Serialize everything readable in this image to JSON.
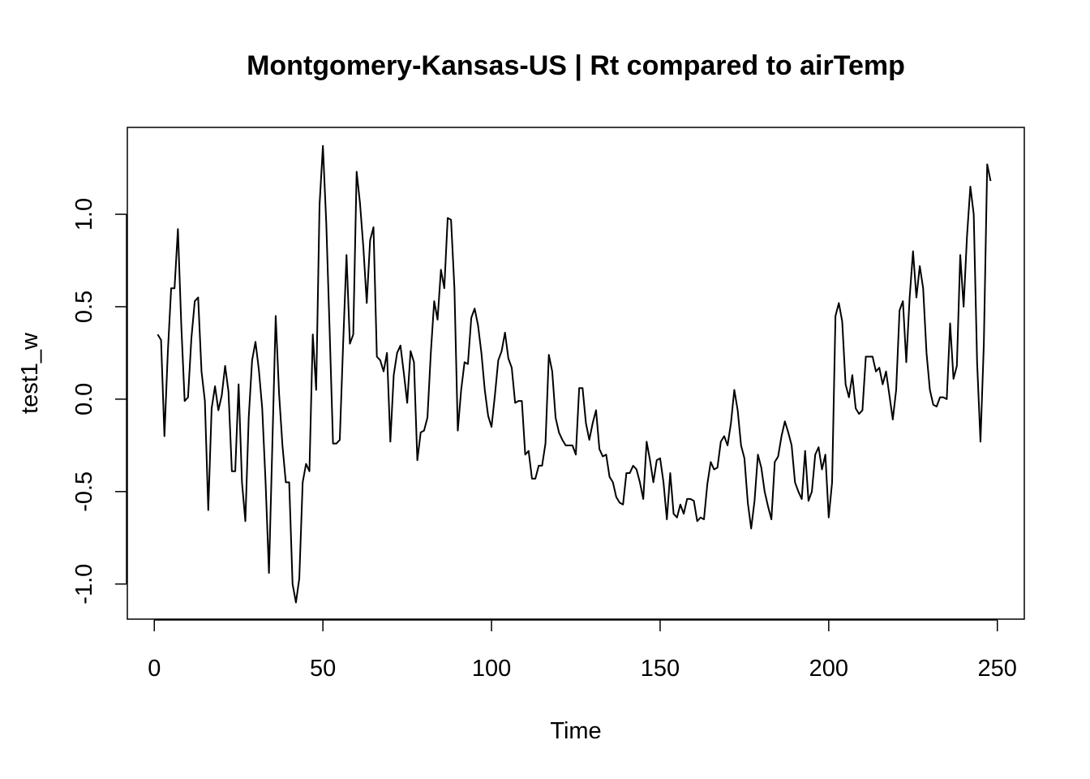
{
  "chart_data": {
    "type": "line",
    "title": "Montgomery-Kansas-US | Rt compared to airTemp",
    "xlabel": "Time",
    "ylabel": "test1_w",
    "xlim": [
      -8,
      258
    ],
    "ylim": [
      -1.19,
      1.47
    ],
    "x_ticks": [
      0,
      50,
      100,
      150,
      200,
      250
    ],
    "x_tick_labels": [
      "0",
      "50",
      "100",
      "150",
      "200",
      "250"
    ],
    "y_ticks": [
      -1.0,
      -0.5,
      0.0,
      0.5,
      1.0
    ],
    "y_tick_labels": [
      "-1.0",
      "-0.5",
      "0.0",
      "0.5",
      "1.0"
    ],
    "grid": false,
    "line_color": "#000000",
    "series": [
      {
        "x_start": 1,
        "x_step": 1,
        "values": [
          0.35,
          0.32,
          -0.2,
          0.25,
          0.6,
          0.6,
          0.92,
          0.4,
          -0.01,
          0.01,
          0.33,
          0.53,
          0.55,
          0.15,
          -0.01,
          -0.6,
          -0.05,
          0.07,
          -0.06,
          0.02,
          0.18,
          0.04,
          -0.39,
          -0.39,
          0.08,
          -0.45,
          -0.66,
          -0.1,
          0.21,
          0.31,
          0.16,
          -0.05,
          -0.45,
          -0.94,
          -0.25,
          0.45,
          0.03,
          -0.25,
          -0.45,
          -0.45,
          -1.0,
          -1.1,
          -0.97,
          -0.45,
          -0.35,
          -0.39,
          0.35,
          0.05,
          1.05,
          1.37,
          0.95,
          0.37,
          -0.24,
          -0.24,
          -0.22,
          0.3,
          0.78,
          0.3,
          0.35,
          1.23,
          1.06,
          0.82,
          0.52,
          0.86,
          0.93,
          0.23,
          0.21,
          0.15,
          0.25,
          -0.23,
          0.13,
          0.25,
          0.29,
          0.14,
          -0.02,
          0.26,
          0.2,
          -0.33,
          -0.18,
          -0.17,
          -0.1,
          0.25,
          0.53,
          0.43,
          0.7,
          0.6,
          0.98,
          0.97,
          0.6,
          -0.17,
          0.05,
          0.2,
          0.19,
          0.44,
          0.49,
          0.4,
          0.25,
          0.05,
          -0.09,
          -0.15,
          0.02,
          0.21,
          0.26,
          0.36,
          0.22,
          0.17,
          -0.02,
          -0.01,
          -0.01,
          -0.3,
          -0.28,
          -0.43,
          -0.43,
          -0.36,
          -0.36,
          -0.24,
          0.24,
          0.15,
          -0.1,
          -0.18,
          -0.22,
          -0.25,
          -0.25,
          -0.25,
          -0.3,
          0.06,
          0.06,
          -0.13,
          -0.22,
          -0.13,
          -0.06,
          -0.27,
          -0.31,
          -0.3,
          -0.42,
          -0.45,
          -0.53,
          -0.56,
          -0.57,
          -0.4,
          -0.4,
          -0.36,
          -0.38,
          -0.45,
          -0.54,
          -0.23,
          -0.33,
          -0.45,
          -0.33,
          -0.32,
          -0.45,
          -0.65,
          -0.4,
          -0.62,
          -0.64,
          -0.57,
          -0.62,
          -0.54,
          -0.54,
          -0.55,
          -0.66,
          -0.64,
          -0.65,
          -0.46,
          -0.34,
          -0.38,
          -0.37,
          -0.23,
          -0.2,
          -0.25,
          -0.13,
          0.05,
          -0.06,
          -0.25,
          -0.32,
          -0.56,
          -0.7,
          -0.55,
          -0.3,
          -0.37,
          -0.5,
          -0.58,
          -0.65,
          -0.34,
          -0.31,
          -0.2,
          -0.12,
          -0.18,
          -0.25,
          -0.45,
          -0.5,
          -0.54,
          -0.28,
          -0.55,
          -0.5,
          -0.3,
          -0.26,
          -0.38,
          -0.3,
          -0.64,
          -0.45,
          0.45,
          0.52,
          0.42,
          0.08,
          0.01,
          0.13,
          -0.05,
          -0.08,
          -0.06,
          0.23,
          0.23,
          0.23,
          0.15,
          0.17,
          0.08,
          0.15,
          0.02,
          -0.11,
          0.05,
          0.48,
          0.53,
          0.2,
          0.55,
          0.8,
          0.55,
          0.72,
          0.6,
          0.25,
          0.05,
          -0.03,
          -0.04,
          0.01,
          0.01,
          0.0,
          0.41,
          0.11,
          0.18,
          0.78,
          0.5,
          0.88,
          1.15,
          1.0,
          0.2,
          -0.23,
          0.3,
          1.27,
          1.18
        ]
      }
    ]
  }
}
